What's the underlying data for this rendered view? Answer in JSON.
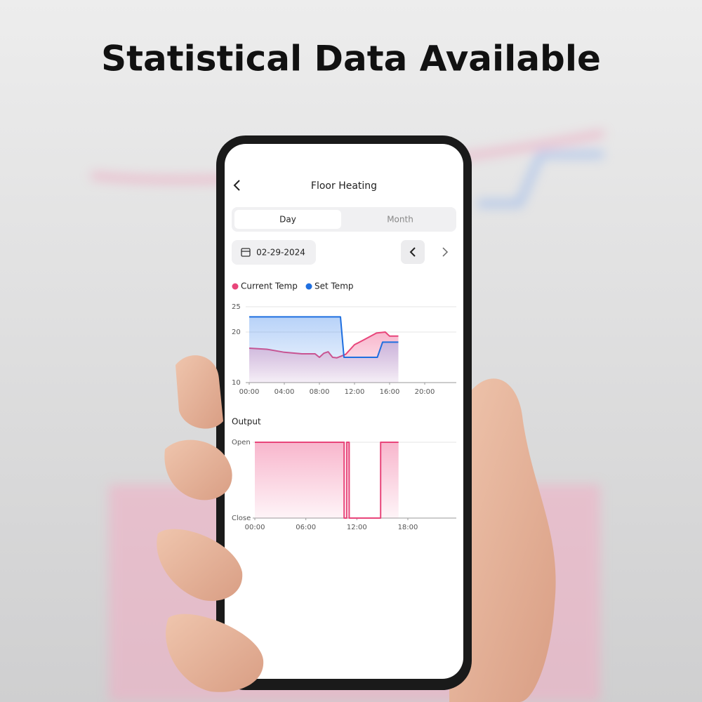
{
  "headline": "Statistical Data Available",
  "screen": {
    "title": "Floor Heating",
    "tabs": [
      "Day",
      "Month"
    ],
    "date": "02-29-2024"
  },
  "chart_data": [
    {
      "type": "line",
      "series": [
        {
          "name": "Current Temp",
          "color": "#e8457a",
          "x": [
            0,
            2,
            4,
            6,
            7.5,
            8,
            8.5,
            9,
            9.5,
            10,
            11,
            12,
            13,
            14.5,
            15.5,
            16,
            17
          ],
          "values": [
            16.8,
            16.6,
            16.0,
            15.7,
            15.7,
            15.0,
            15.8,
            16.1,
            15.0,
            14.9,
            15.6,
            17.5,
            18.4,
            19.8,
            20.0,
            19.2,
            19.2
          ]
        },
        {
          "name": "Set Temp",
          "color": "#1f6fe0",
          "x": [
            0,
            10.4,
            10.8,
            14.6,
            15.2,
            17
          ],
          "values": [
            23,
            23,
            15,
            15,
            18,
            18
          ]
        }
      ],
      "xlim": [
        -0.8,
        23.6
      ],
      "xticks": [
        {
          "value": 0,
          "label": "00:00"
        },
        {
          "value": 4,
          "label": "04:00"
        },
        {
          "value": 8,
          "label": "08:00"
        },
        {
          "value": 12,
          "label": "12:00"
        },
        {
          "value": 16,
          "label": "16:00"
        },
        {
          "value": 20,
          "label": "20:00"
        }
      ],
      "ylim": [
        10,
        25
      ],
      "yticks": [
        10,
        20,
        25
      ],
      "grid": true
    },
    {
      "type": "step",
      "title": "Output",
      "series": [
        {
          "color": "#e8457a",
          "x": [
            0,
            10.5,
            10.5,
            10.8,
            10.8,
            11.1,
            11.1,
            14.8,
            14.8,
            16.9
          ],
          "values": [
            1,
            1,
            0,
            0,
            1,
            1,
            0,
            0,
            1,
            1
          ]
        }
      ],
      "xlim": [
        -0.25,
        23.7
      ],
      "xticks": [
        {
          "value": 0,
          "label": "00:00"
        },
        {
          "value": 6,
          "label": "06:00"
        },
        {
          "value": 12,
          "label": "12:00"
        },
        {
          "value": 18,
          "label": "18:00"
        }
      ],
      "ylim": [
        0,
        1
      ],
      "yticks": [
        {
          "value": 0,
          "label": "Close"
        },
        {
          "value": 1,
          "label": "Open"
        }
      ],
      "grid": true
    }
  ]
}
